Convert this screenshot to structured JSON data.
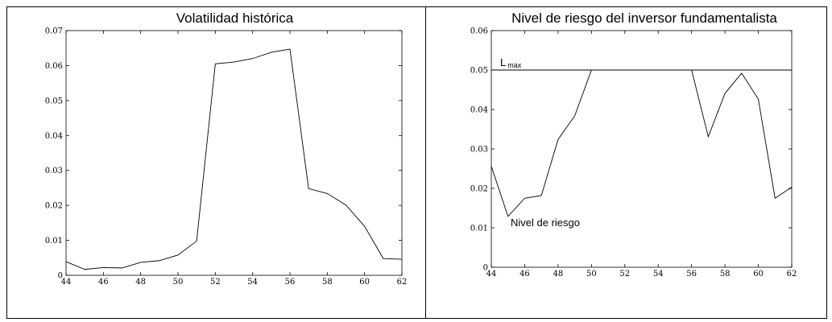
{
  "panels": [
    {
      "title": "Volatilidad histórica"
    },
    {
      "title": "Nivel de riesgo del inversor fundamentalista"
    }
  ],
  "chart_data": [
    {
      "type": "line",
      "title": "Volatilidad histórica",
      "xlabel": "",
      "ylabel": "",
      "xlim": [
        44,
        62
      ],
      "ylim": [
        0,
        0.07
      ],
      "xticks": [
        44,
        46,
        48,
        50,
        52,
        54,
        56,
        58,
        60,
        62
      ],
      "yticks": [
        0,
        0.01,
        0.02,
        0.03,
        0.04,
        0.05,
        0.06,
        0.07
      ],
      "ytick_labels": [
        "0",
        "0.01",
        "0.02",
        "0.03",
        "0.04",
        "0.05",
        "0.06",
        "0.07"
      ],
      "grid": false,
      "x": [
        44,
        45,
        46,
        47,
        48,
        49,
        50,
        51,
        52,
        53,
        54,
        55,
        56,
        57,
        58,
        59,
        60,
        61,
        62
      ],
      "series": [
        {
          "values": [
            0.0039,
            0.0017,
            0.0022,
            0.0021,
            0.0037,
            0.0042,
            0.0058,
            0.0098,
            0.0605,
            0.061,
            0.062,
            0.0638,
            0.0647,
            0.0248,
            0.0234,
            0.0201,
            0.014,
            0.0048,
            0.0046
          ]
        }
      ]
    },
    {
      "type": "line",
      "title": "Nivel de riesgo del inversor fundamentalista",
      "xlabel": "",
      "ylabel": "",
      "xlim": [
        44,
        62
      ],
      "ylim": [
        0,
        0.06
      ],
      "xticks": [
        44,
        46,
        48,
        50,
        52,
        54,
        56,
        58,
        60,
        62
      ],
      "yticks": [
        0,
        0.01,
        0.02,
        0.03,
        0.04,
        0.05,
        0.06
      ],
      "ytick_labels": [
        "0",
        "0.01",
        "0.02",
        "0.03",
        "0.04",
        "0.05",
        "0.06"
      ],
      "grid": false,
      "x": [
        44,
        45,
        46,
        47,
        48,
        49,
        50,
        51,
        52,
        53,
        54,
        55,
        56,
        57,
        58,
        59,
        60,
        61,
        62
      ],
      "series": [
        {
          "values": [
            0.0256,
            0.0129,
            0.0175,
            0.0182,
            0.0324,
            0.0384,
            0.05,
            0.05,
            0.05,
            0.05,
            0.05,
            0.05,
            0.05,
            0.0331,
            0.0441,
            0.0492,
            0.0426,
            0.0175,
            0.0203
          ]
        }
      ],
      "hlines": [
        {
          "y": 0.05
        }
      ],
      "annotations": {
        "lmax_main": "L",
        "lmax_sub": "max",
        "series_label": "Nivel de riesgo"
      }
    }
  ]
}
